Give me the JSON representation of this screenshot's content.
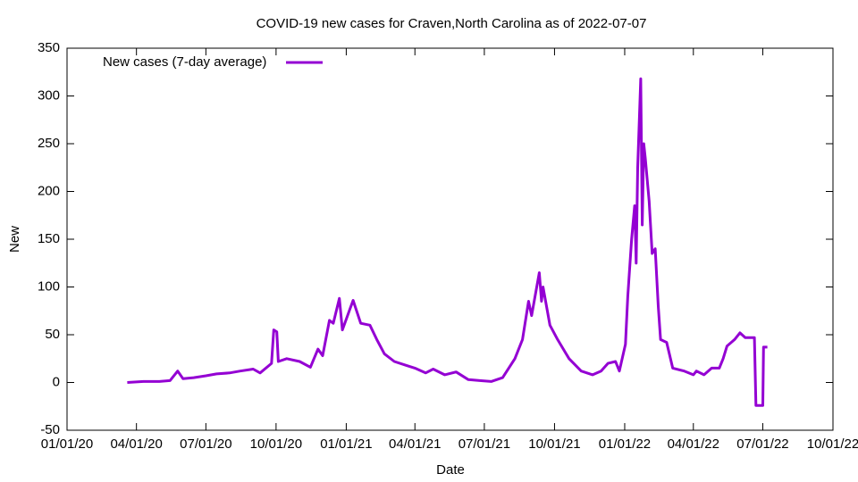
{
  "chart_data": {
    "type": "line",
    "title": "COVID-19 new cases for Craven,North Carolina as of 2022-07-07",
    "xlabel": "Date",
    "ylabel": "New",
    "legend": "top-left",
    "xlim": [
      "01/01/20",
      "10/01/22"
    ],
    "xticks": [
      "01/01/20",
      "04/01/20",
      "07/01/20",
      "10/01/20",
      "01/01/21",
      "04/01/21",
      "07/01/21",
      "10/01/21",
      "01/01/22",
      "04/01/22",
      "07/01/22",
      "10/01/22"
    ],
    "ylim": [
      -50,
      350
    ],
    "yticks": [
      -50,
      0,
      50,
      100,
      150,
      200,
      250,
      300,
      350
    ],
    "x": [
      "03/20/20",
      "04/10/20",
      "05/01/20",
      "05/15/20",
      "05/25/20",
      "06/01/20",
      "06/15/20",
      "07/01/20",
      "07/15/20",
      "08/01/20",
      "08/15/20",
      "09/01/20",
      "09/10/20",
      "09/25/20",
      "09/28/20",
      "10/02/20",
      "10/04/20",
      "10/15/20",
      "11/01/20",
      "11/15/20",
      "11/25/20",
      "12/01/20",
      "12/10/20",
      "12/15/20",
      "12/23/20",
      "12/27/20",
      "01/05/21",
      "01/10/21",
      "01/20/21",
      "02/01/21",
      "02/10/21",
      "02/20/21",
      "03/05/21",
      "03/20/21",
      "04/01/21",
      "04/15/21",
      "04/25/21",
      "05/10/21",
      "05/25/21",
      "06/10/21",
      "06/25/21",
      "07/10/21",
      "07/25/21",
      "08/10/21",
      "08/20/21",
      "08/28/21",
      "09/01/21",
      "09/11/21",
      "09/14/21",
      "09/16/21",
      "09/25/21",
      "10/05/21",
      "10/20/21",
      "11/05/21",
      "11/20/21",
      "12/01/21",
      "12/10/21",
      "12/20/21",
      "12/25/21",
      "01/02/22",
      "01/05/22",
      "01/10/22",
      "01/14/22",
      "01/16/22",
      "01/18/22",
      "01/22/22",
      "01/24/22",
      "01/26/22",
      "01/28/22",
      "02/02/22",
      "02/06/22",
      "02/10/22",
      "02/14/22",
      "02/17/22",
      "02/25/22",
      "03/05/22",
      "03/20/22",
      "04/01/22",
      "04/05/22",
      "04/15/22",
      "04/25/22",
      "05/05/22",
      "05/10/22",
      "05/15/22",
      "05/25/22",
      "06/01/22",
      "06/08/22",
      "06/20/22",
      "06/22/22",
      "07/01/22",
      "07/02/22",
      "07/07/22"
    ],
    "series": [
      {
        "name": "New cases (7-day average)",
        "color": "#9400d3",
        "values": [
          0,
          1,
          1,
          2,
          12,
          4,
          5,
          7,
          9,
          10,
          12,
          14,
          10,
          20,
          55,
          53,
          22,
          25,
          22,
          16,
          35,
          28,
          65,
          62,
          88,
          55,
          75,
          86,
          62,
          60,
          45,
          30,
          22,
          18,
          15,
          10,
          14,
          8,
          11,
          3,
          2,
          1,
          5,
          25,
          45,
          85,
          70,
          115,
          85,
          100,
          60,
          45,
          25,
          12,
          8,
          12,
          20,
          22,
          12,
          40,
          90,
          150,
          185,
          125,
          225,
          318,
          165,
          250,
          235,
          190,
          135,
          140,
          80,
          45,
          42,
          15,
          12,
          8,
          12,
          8,
          15,
          15,
          25,
          38,
          45,
          52,
          47,
          47,
          -24,
          -24,
          37,
          37
        ]
      }
    ]
  }
}
